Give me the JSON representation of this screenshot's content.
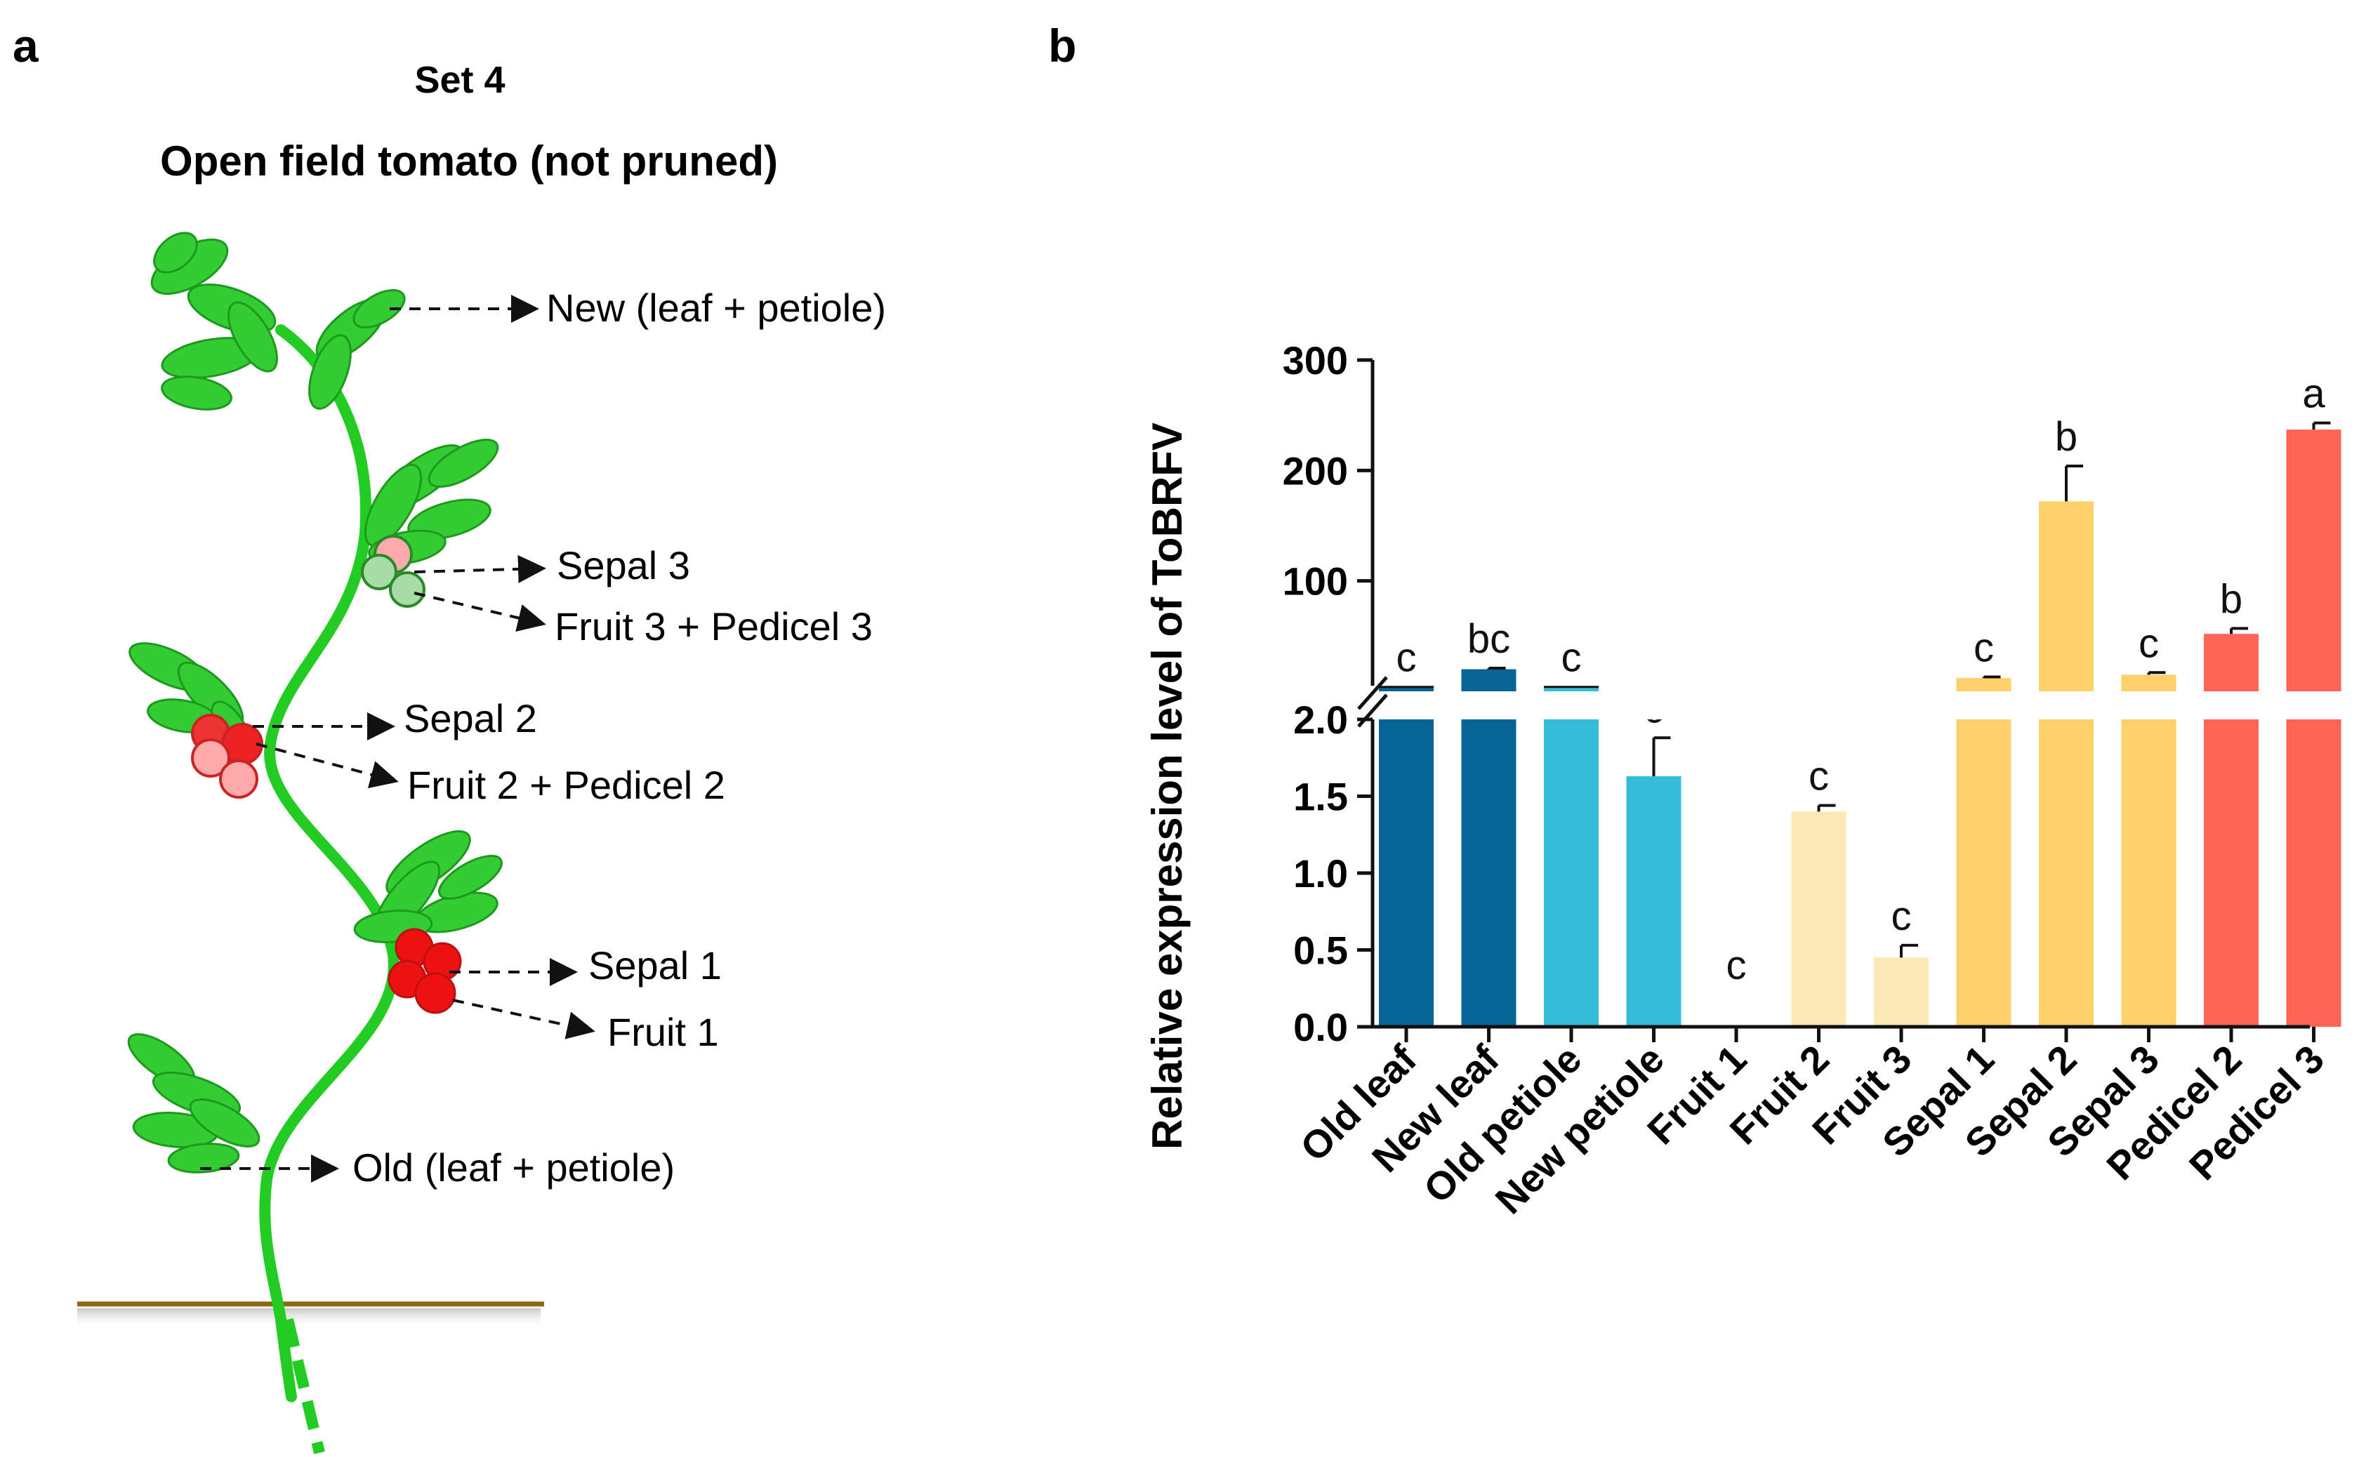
{
  "panel_a": {
    "label": "a",
    "title_line1": "Set 4",
    "title_line2": "Open field tomato (not pruned)",
    "labels": {
      "new": "New (leaf + petiole)",
      "sepal3": "Sepal 3",
      "fruit3": "Fruit 3 + Pedicel  3",
      "sepal2": "Sepal 2",
      "fruit2": "Fruit 2 + Pedicel  2",
      "sepal1": "Sepal 1",
      "fruit1": "Fruit 1",
      "old": "Old (leaf + petiole)"
    },
    "colors": {
      "stem": "#22cc22",
      "leaf": "#33cc33",
      "fruit_ripe": "#ee1111",
      "fruit_green": "#99dd99",
      "ground": "#8b6914"
    }
  },
  "panel_b": {
    "label": "b",
    "chart_data": {
      "type": "bar",
      "ylabel": "Relative expression level of ToBRFV",
      "axis_break": true,
      "lower_ylim": [
        0,
        2.0
      ],
      "lower_ticks": [
        "0.0",
        "0.5",
        "1.0",
        "1.5",
        "2.0"
      ],
      "upper_ylim": [
        0,
        300
      ],
      "upper_ticks": [
        "100",
        "200",
        "300"
      ],
      "categories": [
        "Old leaf",
        "New leaf",
        "Old petiole",
        "New petiole",
        "Fruit 1",
        "Fruit 2",
        "Fruit 3",
        "Sepal 1",
        "Sepal 2",
        "Sepal 3",
        "Pedicel 2",
        "Pedicel 3"
      ],
      "values": [
        4,
        20,
        4,
        1.63,
        0,
        1.4,
        0.45,
        12,
        172,
        15,
        52,
        237
      ],
      "errors": [
        0,
        1,
        0,
        0.25,
        0,
        0.04,
        0.08,
        1,
        32,
        2,
        5,
        6
      ],
      "letters": [
        "c",
        "bc",
        "c",
        "c",
        "c",
        "c",
        "c",
        "c",
        "b",
        "c",
        "b",
        "a"
      ],
      "colors": [
        "#066594",
        "#066594",
        "#36bcdb",
        "#36bcdb",
        "#fce8b4",
        "#fce8b4",
        "#fce8b4",
        "#fdd06a",
        "#fdd06a",
        "#fdd06a",
        "#fd6456",
        "#fd6456"
      ]
    }
  }
}
